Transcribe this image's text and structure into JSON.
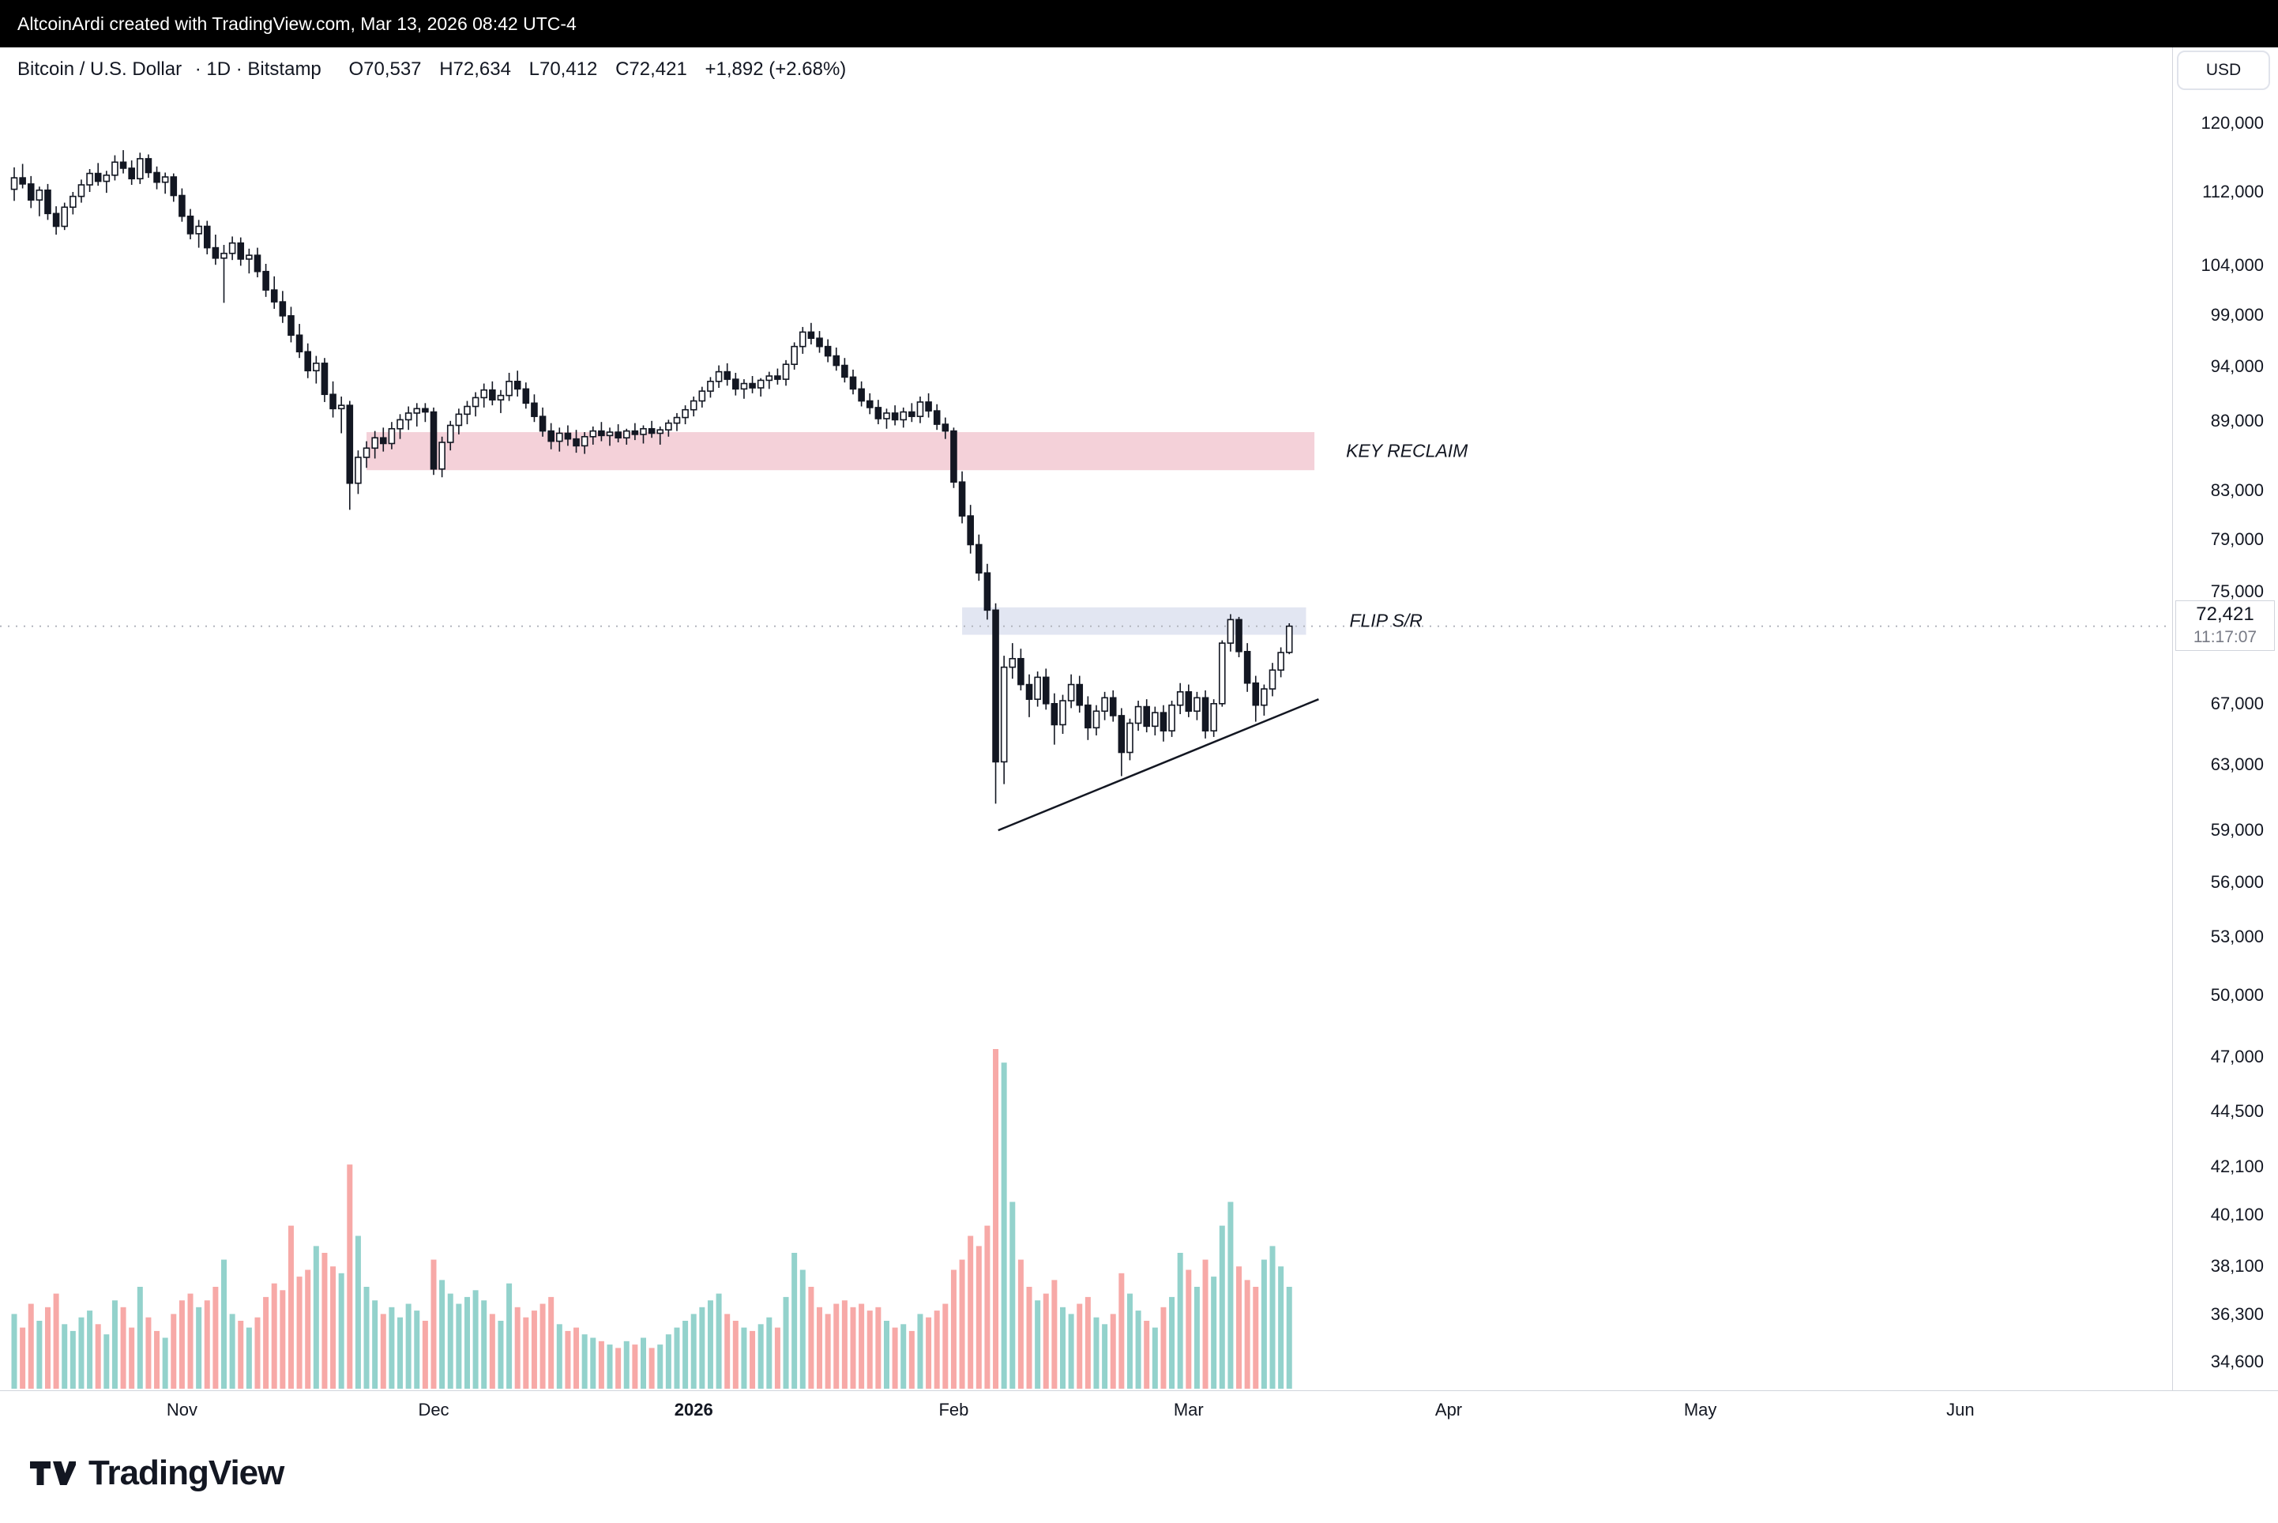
{
  "topbar": {
    "attribution": "AltcoinArdi created with TradingView.com, Mar 13, 2026 08:42 UTC-4"
  },
  "header": {
    "symbol": "Bitcoin / U.S. Dollar",
    "meta": "· 1D · Bitstamp",
    "o": "O70,537",
    "h": "H72,634",
    "l": "L70,412",
    "c": "C72,421",
    "change": "+1,892 (+2.68%)"
  },
  "controls": {
    "currency": "USD"
  },
  "price_axis": {
    "last_price": "72,421",
    "countdown": "11:17:07",
    "ticks": [
      {
        "label": "120,000",
        "value": 120000
      },
      {
        "label": "112,000",
        "value": 112000
      },
      {
        "label": "104,000",
        "value": 104000
      },
      {
        "label": "99,000",
        "value": 99000
      },
      {
        "label": "94,000",
        "value": 94000
      },
      {
        "label": "89,000",
        "value": 89000
      },
      {
        "label": "83,000",
        "value": 83000
      },
      {
        "label": "79,000",
        "value": 79000
      },
      {
        "label": "75,000",
        "value": 75000
      },
      {
        "label": "67,000",
        "value": 67000
      },
      {
        "label": "63,000",
        "value": 63000
      },
      {
        "label": "59,000",
        "value": 59000
      },
      {
        "label": "56,000",
        "value": 56000
      },
      {
        "label": "53,000",
        "value": 53000
      },
      {
        "label": "50,000",
        "value": 50000
      },
      {
        "label": "47,000",
        "value": 47000
      },
      {
        "label": "44,500",
        "value": 44500
      },
      {
        "label": "42,100",
        "value": 42100
      },
      {
        "label": "40,100",
        "value": 40100
      },
      {
        "label": "38,100",
        "value": 38100
      },
      {
        "label": "36,300",
        "value": 36300
      },
      {
        "label": "34,600",
        "value": 34600
      }
    ]
  },
  "time_axis": {
    "labels": [
      {
        "label": "Nov",
        "day": 20,
        "bold": false
      },
      {
        "label": "Dec",
        "day": 50,
        "bold": false
      },
      {
        "label": "2026",
        "day": 81,
        "bold": true
      },
      {
        "label": "Feb",
        "day": 112,
        "bold": false
      },
      {
        "label": "Mar",
        "day": 140,
        "bold": false
      },
      {
        "label": "Apr",
        "day": 171,
        "bold": false
      },
      {
        "label": "May",
        "day": 201,
        "bold": false
      },
      {
        "label": "Jun",
        "day": 232,
        "bold": false
      }
    ]
  },
  "footer": {
    "brand": "TradingView"
  },
  "chart_data": {
    "type": "candlestick",
    "title": "Bitcoin / U.S. Dollar · 1D · Bitstamp",
    "y_scale": "log",
    "last_price": 72421,
    "change_abs": 1892,
    "change_pct": 2.68,
    "volume_units": "relative_0_100",
    "bands": [
      {
        "name": "key-reclaim",
        "label": "KEY RECLAIM",
        "price_top": 88000,
        "price_bottom": 84700,
        "day_start": 42,
        "day_end": 155,
        "color": "#f4d1d9"
      },
      {
        "name": "flip-sr",
        "label": "FLIP S/R",
        "price_top": 73800,
        "price_bottom": 71800,
        "day_start": 113,
        "day_end": 154,
        "color": "#e2e6f2"
      }
    ],
    "trendline": {
      "day1": 117.3,
      "price1": 59000,
      "day2": 155.5,
      "price2": 67300,
      "color": "#131722"
    },
    "candles": [
      [
        112300,
        114800,
        111000,
        113600,
        22
      ],
      [
        113600,
        115200,
        112400,
        112900,
        18
      ],
      [
        112900,
        113800,
        110200,
        111100,
        25
      ],
      [
        111100,
        112600,
        109300,
        112200,
        20
      ],
      [
        112200,
        112900,
        108900,
        109600,
        24
      ],
      [
        109600,
        110400,
        107300,
        108200,
        28
      ],
      [
        108200,
        110800,
        107800,
        110300,
        19
      ],
      [
        110300,
        112000,
        109500,
        111500,
        17
      ],
      [
        111500,
        113400,
        110800,
        112800,
        21
      ],
      [
        112800,
        114600,
        112000,
        114100,
        23
      ],
      [
        114100,
        115300,
        112700,
        113200,
        19
      ],
      [
        113200,
        114400,
        111900,
        113900,
        16
      ],
      [
        113900,
        116200,
        113300,
        115400,
        26
      ],
      [
        115400,
        116800,
        114100,
        114700,
        24
      ],
      [
        114700,
        115600,
        112800,
        113500,
        18
      ],
      [
        113500,
        116500,
        112900,
        115800,
        30
      ],
      [
        115800,
        116300,
        113600,
        114200,
        21
      ],
      [
        114200,
        114900,
        112300,
        113100,
        17
      ],
      [
        113100,
        114200,
        111800,
        113700,
        15
      ],
      [
        113700,
        114100,
        110900,
        111600,
        22
      ],
      [
        111600,
        112400,
        108700,
        109300,
        26
      ],
      [
        109300,
        110100,
        106800,
        107400,
        28
      ],
      [
        107400,
        108900,
        105900,
        108200,
        24
      ],
      [
        108200,
        108800,
        105200,
        105900,
        26
      ],
      [
        105900,
        107300,
        104100,
        104800,
        30
      ],
      [
        104800,
        106200,
        100200,
        105300,
        38
      ],
      [
        105300,
        107100,
        104600,
        106400,
        22
      ],
      [
        106400,
        107000,
        104000,
        104700,
        20
      ],
      [
        104700,
        105800,
        103200,
        105100,
        18
      ],
      [
        105100,
        105900,
        102800,
        103400,
        21
      ],
      [
        103400,
        104200,
        100800,
        101500,
        27
      ],
      [
        101500,
        102900,
        99600,
        100300,
        31
      ],
      [
        100300,
        101400,
        98200,
        98900,
        29
      ],
      [
        98900,
        99800,
        96300,
        97000,
        48
      ],
      [
        97000,
        98100,
        94800,
        95400,
        33
      ],
      [
        95400,
        96200,
        92900,
        93600,
        35
      ],
      [
        93600,
        95000,
        92400,
        94300,
        42
      ],
      [
        94300,
        94800,
        90700,
        91400,
        40
      ],
      [
        91400,
        92600,
        89300,
        90100,
        36
      ],
      [
        90100,
        91200,
        87900,
        90400,
        34
      ],
      [
        90400,
        90800,
        81400,
        83600,
        66
      ],
      [
        83600,
        86400,
        82700,
        85800,
        45
      ],
      [
        85800,
        87200,
        84900,
        86600,
        30
      ],
      [
        86600,
        88100,
        85700,
        87500,
        26
      ],
      [
        87500,
        88400,
        86300,
        87000,
        22
      ],
      [
        87000,
        88900,
        86500,
        88300,
        24
      ],
      [
        88300,
        89600,
        87400,
        89100,
        21
      ],
      [
        89100,
        90300,
        88200,
        89700,
        25
      ],
      [
        89700,
        90600,
        88500,
        90100,
        23
      ],
      [
        90100,
        90600,
        88900,
        89800,
        20
      ],
      [
        89800,
        90200,
        84300,
        84800,
        38
      ],
      [
        84800,
        87600,
        84100,
        87100,
        32
      ],
      [
        87100,
        89000,
        86400,
        88600,
        28
      ],
      [
        88600,
        90100,
        87800,
        89600,
        25
      ],
      [
        89600,
        90800,
        88700,
        90300,
        27
      ],
      [
        90300,
        91600,
        89400,
        91100,
        29
      ],
      [
        91100,
        92400,
        90200,
        91800,
        26
      ],
      [
        91800,
        92600,
        90400,
        90900,
        22
      ],
      [
        90900,
        91800,
        89700,
        91300,
        20
      ],
      [
        91300,
        93400,
        90800,
        92600,
        31
      ],
      [
        92600,
        93600,
        91200,
        91900,
        24
      ],
      [
        91900,
        92500,
        90100,
        90600,
        21
      ],
      [
        90600,
        91400,
        88900,
        89400,
        23
      ],
      [
        89400,
        90200,
        87600,
        88100,
        25
      ],
      [
        88100,
        88800,
        86500,
        87200,
        27
      ],
      [
        87200,
        88400,
        86300,
        87900,
        19
      ],
      [
        87900,
        88600,
        86800,
        87400,
        17
      ],
      [
        87400,
        88200,
        86200,
        86800,
        18
      ],
      [
        86800,
        88000,
        86100,
        87600,
        16
      ],
      [
        87600,
        88500,
        86900,
        88100,
        15
      ],
      [
        88100,
        88900,
        87200,
        87700,
        14
      ],
      [
        87700,
        88400,
        86800,
        88000,
        13
      ],
      [
        88000,
        88700,
        87100,
        87500,
        12
      ],
      [
        87500,
        88300,
        86900,
        88100,
        14
      ],
      [
        88100,
        88800,
        87300,
        87800,
        13
      ],
      [
        87800,
        88600,
        87000,
        88300,
        15
      ],
      [
        88300,
        89000,
        87500,
        87900,
        12
      ],
      [
        87900,
        88500,
        86900,
        88200,
        13
      ],
      [
        88200,
        89100,
        87600,
        88800,
        16
      ],
      [
        88800,
        89700,
        88100,
        89300,
        18
      ],
      [
        89300,
        90400,
        88700,
        90000,
        20
      ],
      [
        90000,
        91200,
        89400,
        90800,
        22
      ],
      [
        90800,
        92100,
        90200,
        91700,
        24
      ],
      [
        91700,
        93000,
        91100,
        92600,
        26
      ],
      [
        92600,
        94100,
        92000,
        93500,
        28
      ],
      [
        93500,
        94300,
        92200,
        92800,
        22
      ],
      [
        92800,
        93400,
        91300,
        91900,
        20
      ],
      [
        91900,
        92800,
        91000,
        92400,
        18
      ],
      [
        92400,
        93100,
        91500,
        92000,
        17
      ],
      [
        92000,
        92900,
        91200,
        92700,
        19
      ],
      [
        92700,
        93500,
        91900,
        93100,
        21
      ],
      [
        93100,
        93800,
        92300,
        92800,
        18
      ],
      [
        92800,
        94600,
        92200,
        94200,
        27
      ],
      [
        94200,
        96300,
        93700,
        95900,
        40
      ],
      [
        95900,
        97800,
        95200,
        97300,
        35
      ],
      [
        97300,
        98200,
        96100,
        96700,
        30
      ],
      [
        96700,
        97400,
        95300,
        95900,
        24
      ],
      [
        95900,
        96600,
        94400,
        95000,
        22
      ],
      [
        95000,
        95800,
        93600,
        94100,
        25
      ],
      [
        94100,
        94800,
        92500,
        93000,
        26
      ],
      [
        93000,
        93700,
        91400,
        91900,
        24
      ],
      [
        91900,
        92600,
        90300,
        90800,
        25
      ],
      [
        90800,
        91500,
        89600,
        90200,
        23
      ],
      [
        90200,
        90900,
        88700,
        89200,
        24
      ],
      [
        89200,
        90100,
        88300,
        89700,
        20
      ],
      [
        89700,
        90400,
        88600,
        89100,
        18
      ],
      [
        89100,
        90200,
        88400,
        89800,
        19
      ],
      [
        89800,
        90600,
        88900,
        89400,
        17
      ],
      [
        89400,
        91200,
        88800,
        90700,
        22
      ],
      [
        90700,
        91500,
        89300,
        89900,
        21
      ],
      [
        89900,
        90500,
        88200,
        88700,
        23
      ],
      [
        88700,
        89300,
        87400,
        88100,
        25
      ],
      [
        88100,
        88400,
        83200,
        83700,
        35
      ],
      [
        83700,
        84600,
        80300,
        80900,
        38
      ],
      [
        80900,
        81800,
        77900,
        78600,
        45
      ],
      [
        78600,
        79400,
        75800,
        76400,
        42
      ],
      [
        76400,
        77100,
        72900,
        73600,
        48
      ],
      [
        73600,
        74100,
        60600,
        63200,
        100
      ],
      [
        63200,
        70300,
        61800,
        69500,
        96
      ],
      [
        69500,
        71200,
        68700,
        70100,
        55
      ],
      [
        70100,
        70800,
        67900,
        68300,
        38
      ],
      [
        68300,
        69000,
        66100,
        67300,
        30
      ],
      [
        67300,
        69200,
        66800,
        68800,
        26
      ],
      [
        68800,
        69400,
        66600,
        67000,
        28
      ],
      [
        67000,
        67700,
        64300,
        65600,
        32
      ],
      [
        65600,
        67600,
        65000,
        67200,
        24
      ],
      [
        67200,
        69000,
        66700,
        68300,
        22
      ],
      [
        68300,
        68900,
        66400,
        66900,
        25
      ],
      [
        66900,
        67500,
        64600,
        65400,
        27
      ],
      [
        65400,
        66900,
        64900,
        66500,
        21
      ],
      [
        66500,
        67800,
        65900,
        67400,
        19
      ],
      [
        67400,
        67900,
        65800,
        66200,
        22
      ],
      [
        66200,
        66700,
        62300,
        63800,
        34
      ],
      [
        63800,
        66000,
        63300,
        65700,
        28
      ],
      [
        65700,
        67200,
        65200,
        66800,
        23
      ],
      [
        66800,
        67300,
        65100,
        65500,
        20
      ],
      [
        65500,
        66800,
        64900,
        66400,
        18
      ],
      [
        66400,
        66900,
        64500,
        65200,
        24
      ],
      [
        65200,
        67200,
        64800,
        66900,
        27
      ],
      [
        66900,
        68400,
        66300,
        67800,
        40
      ],
      [
        67800,
        68300,
        66100,
        66500,
        35
      ],
      [
        66500,
        67800,
        65900,
        67400,
        30
      ],
      [
        67400,
        67900,
        64700,
        65200,
        38
      ],
      [
        65200,
        67300,
        64800,
        67000,
        33
      ],
      [
        67000,
        71400,
        66800,
        71200,
        48
      ],
      [
        71200,
        73300,
        70600,
        72900,
        55
      ],
      [
        72900,
        73100,
        70200,
        70600,
        36
      ],
      [
        70600,
        71200,
        67800,
        68400,
        32
      ],
      [
        68400,
        68900,
        65800,
        66900,
        30
      ],
      [
        66900,
        68300,
        66200,
        68000,
        38
      ],
      [
        68000,
        69800,
        67500,
        69300,
        42
      ],
      [
        69300,
        70900,
        68800,
        70529,
        36
      ],
      [
        70537,
        72634,
        70412,
        72421,
        30
      ]
    ]
  }
}
